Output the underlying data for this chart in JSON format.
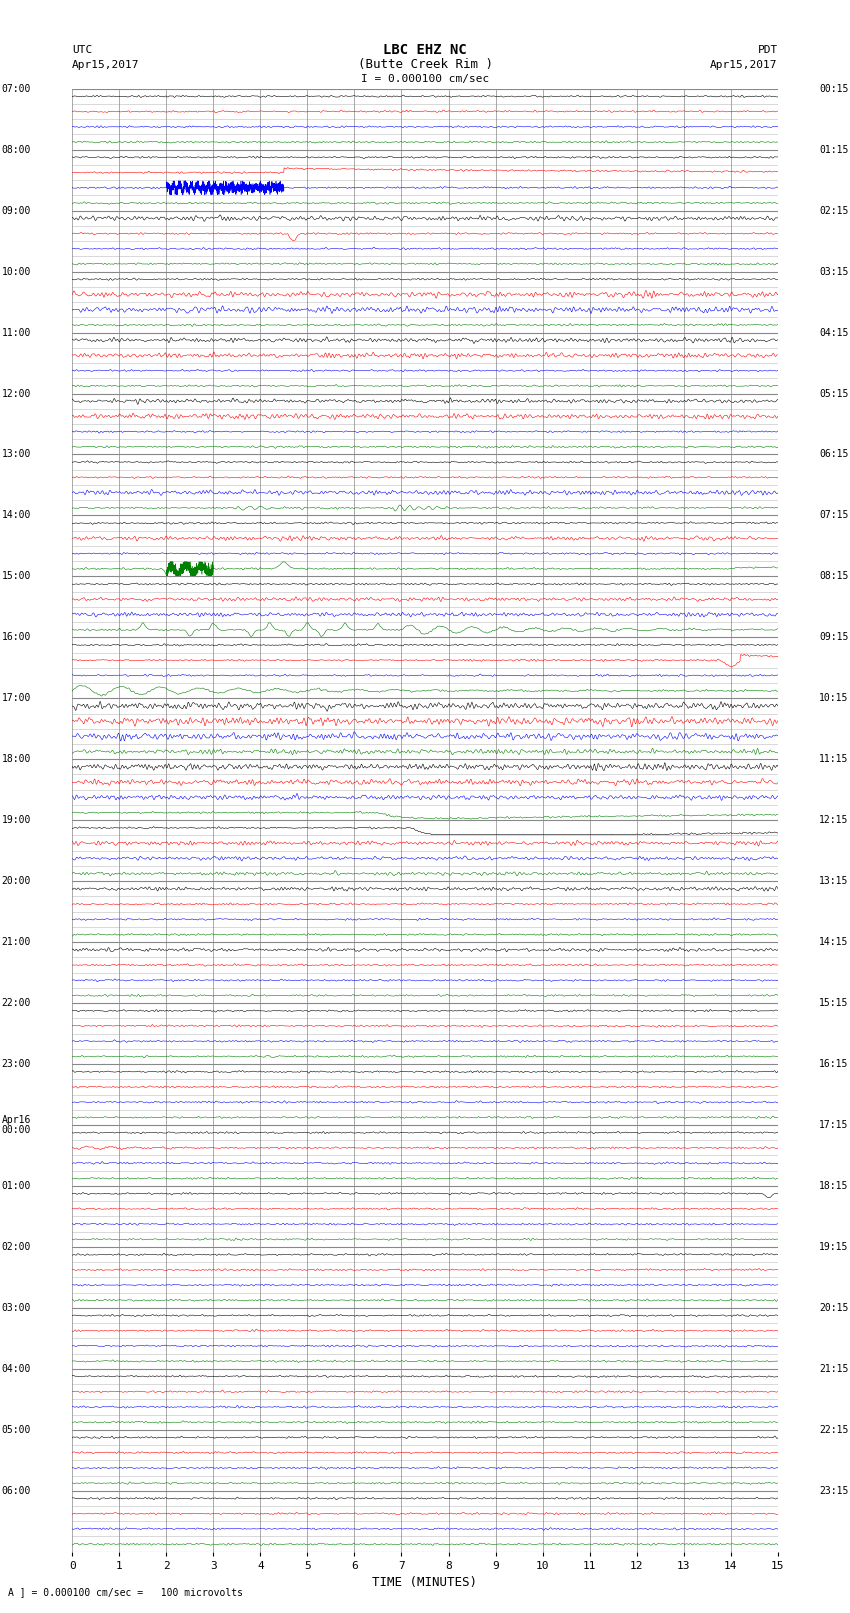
{
  "title_line1": "LBC EHZ NC",
  "title_line2": "(Butte Creek Rim )",
  "title_line3": "I = 0.000100 cm/sec",
  "left_label_top": "UTC",
  "left_label_date": "Apr15,2017",
  "right_label_top": "PDT",
  "right_label_date": "Apr15,2017",
  "xlabel": "TIME (MINUTES)",
  "bottom_note": "A ] = 0.000100 cm/sec =   100 microvolts",
  "xlim": [
    0,
    15
  ],
  "xticks": [
    0,
    1,
    2,
    3,
    4,
    5,
    6,
    7,
    8,
    9,
    10,
    11,
    12,
    13,
    14,
    15
  ],
  "utc_times": [
    "07:00",
    "08:00",
    "09:00",
    "10:00",
    "11:00",
    "12:00",
    "13:00",
    "14:00",
    "15:00",
    "16:00",
    "17:00",
    "18:00",
    "19:00",
    "20:00",
    "21:00",
    "22:00",
    "23:00",
    "Apr16\n00:00",
    "01:00",
    "02:00",
    "03:00",
    "04:00",
    "05:00",
    "06:00"
  ],
  "pdt_times": [
    "00:15",
    "01:15",
    "02:15",
    "03:15",
    "04:15",
    "05:15",
    "06:15",
    "07:15",
    "08:15",
    "09:15",
    "10:15",
    "11:15",
    "12:15",
    "13:15",
    "14:15",
    "15:15",
    "16:15",
    "17:15",
    "18:15",
    "19:15",
    "20:15",
    "21:15",
    "22:15",
    "23:15"
  ],
  "n_hours": 24,
  "traces_per_hour": 4,
  "bg_color": "#ffffff",
  "grid_color": "#888888",
  "minor_grid_color": "#bbbbbb",
  "trace_colors": [
    "black",
    "red",
    "blue",
    "green"
  ],
  "seed": 42
}
